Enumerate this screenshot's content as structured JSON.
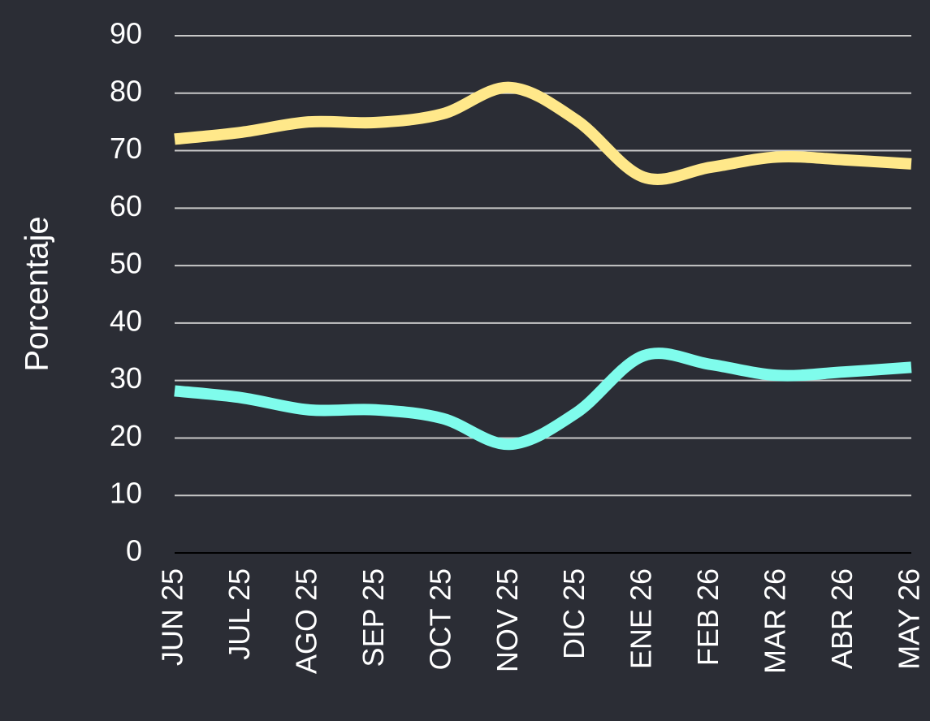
{
  "chart_data": {
    "type": "line",
    "y_label": "Porcentaje",
    "categories": [
      "JUN 25",
      "JUL 25",
      "AGO 25",
      "SEP 25",
      "OCT 25",
      "NOV 25",
      "DIC 25",
      "ENE 26",
      "FEB 26",
      "MAR 26",
      "ABR 26",
      "MAY 26"
    ],
    "series": [
      {
        "color": "#ffe88a",
        "values": [
          72,
          73.2,
          75,
          74.9,
          76.4,
          81,
          75.3,
          65.4,
          67.1,
          68.9,
          68.4,
          67.7
        ]
      },
      {
        "color": "#7ffcec",
        "values": [
          28.2,
          27,
          24.9,
          24.9,
          23.4,
          18.9,
          24.4,
          34.3,
          32.8,
          30.9,
          31.5,
          32.3
        ]
      }
    ],
    "ylim": [
      0,
      90
    ],
    "yticks": [
      0,
      10,
      20,
      30,
      40,
      50,
      60,
      70,
      80,
      90
    ],
    "grid": true
  }
}
